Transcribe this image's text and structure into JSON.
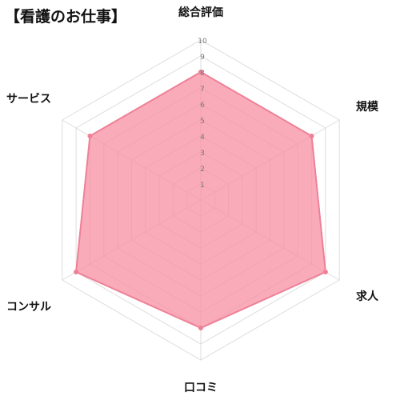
{
  "header": {
    "title": "【看護のお仕事】"
  },
  "chart_data": {
    "type": "radar",
    "axes": [
      "総合評価",
      "規模",
      "求人",
      "口コミ",
      "コンサル",
      "サービス"
    ],
    "series": [
      {
        "values": [
          8,
          8,
          9,
          8,
          9,
          8
        ]
      }
    ],
    "rlim": [
      0,
      10
    ],
    "ticks": [
      1,
      2,
      3,
      4,
      5,
      6,
      7,
      8,
      9,
      10
    ],
    "grid": true,
    "legend": "none",
    "colors": {
      "fill": "#f78fa3",
      "stroke": "#ee8096",
      "grid": "#dddddd",
      "tick": "#777777"
    }
  }
}
